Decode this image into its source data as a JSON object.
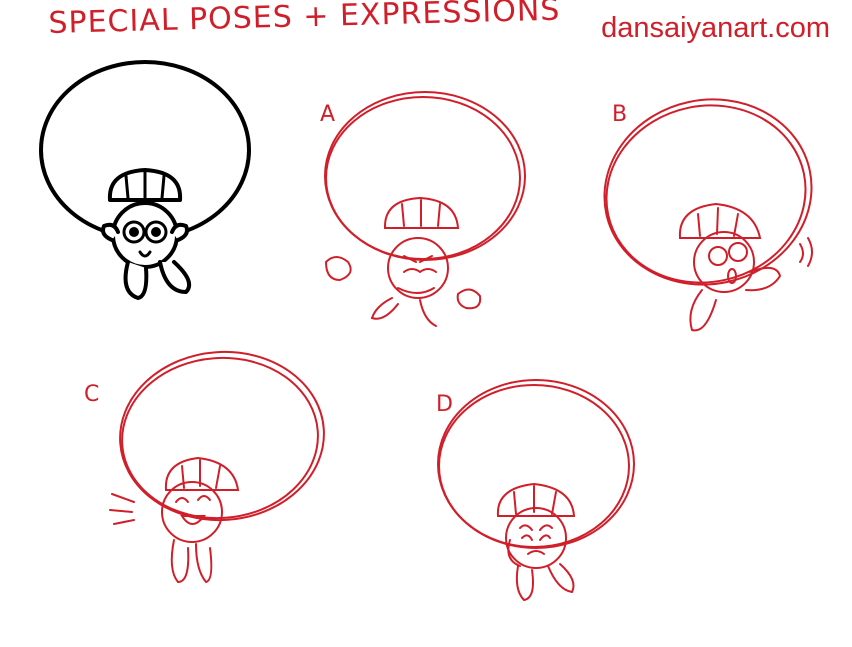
{
  "header": {
    "title": "SPECIAL POSES + EXPRESSIONS",
    "website": "dansaiyanart.com"
  },
  "panels": [
    {
      "label": "",
      "style": "final",
      "expression": "surprised"
    },
    {
      "label": "A",
      "style": "sketch",
      "expression": "angry"
    },
    {
      "label": "B",
      "style": "sketch",
      "expression": "shocked-wave"
    },
    {
      "label": "C",
      "style": "sketch",
      "expression": "laughing"
    },
    {
      "label": "D",
      "style": "sketch",
      "expression": "worried"
    }
  ],
  "colors": {
    "sketch": "#d11f2a",
    "ink": "#000000",
    "background": "#ffffff"
  }
}
